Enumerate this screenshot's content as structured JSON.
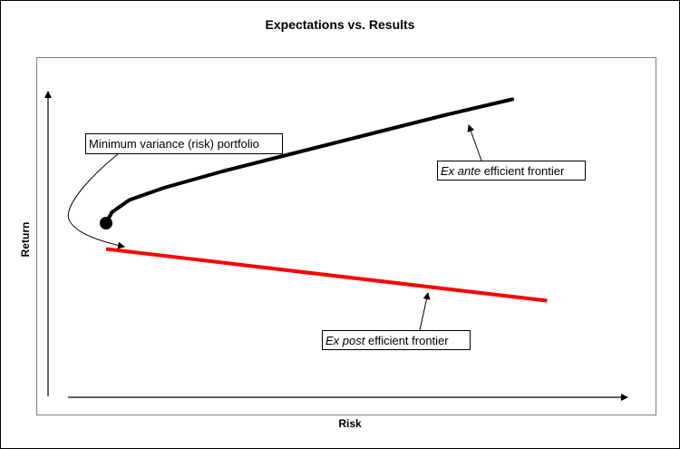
{
  "chart_data": {
    "type": "line",
    "title": "Expectations vs. Results",
    "xlabel": "Risk",
    "ylabel": "Return",
    "grid": false,
    "colors": {
      "ex_ante": "#000000",
      "ex_post": "#ff0000",
      "border": "#7f7f7f"
    },
    "series": [
      {
        "key": "ex_ante",
        "x": [
          1.0,
          1.1,
          1.4,
          2.0,
          3.0,
          4.2,
          5.5,
          6.8,
          8.0
        ],
        "y": [
          6.4,
          6.8,
          7.25,
          7.7,
          8.3,
          8.95,
          9.65,
          10.35,
          10.95
        ]
      },
      {
        "key": "ex_post",
        "x": [
          1.0,
          8.6
        ],
        "y": [
          5.45,
          3.55
        ]
      }
    ],
    "min_variance_point": {
      "x": 1.0,
      "y": 6.4
    },
    "annotations": {
      "min_variance": "Minimum variance (risk) portfolio",
      "ex_ante_italic": "Ex ante",
      "ex_ante_rest": " efficient frontier",
      "ex_post_italic": "Ex post",
      "ex_post_rest": " efficient frontier"
    }
  }
}
